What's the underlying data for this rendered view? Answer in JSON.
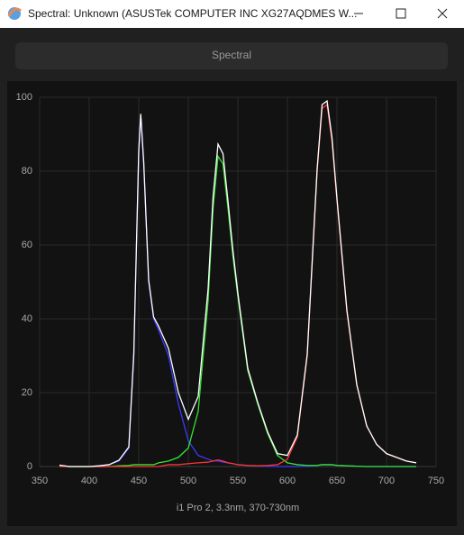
{
  "window": {
    "title": "Spectral: Unknown (ASUSTek COMPUTER INC XG27AQDMES W..."
  },
  "button": "Spectral",
  "chart_data": {
    "type": "line",
    "x_label": "i1 Pro 2, 3.3nm, 370-730nm",
    "x": [
      370,
      380,
      390,
      400,
      410,
      420,
      430,
      440,
      445,
      450,
      452,
      455,
      460,
      465,
      470,
      480,
      490,
      500,
      510,
      520,
      525,
      530,
      535,
      540,
      545,
      550,
      560,
      570,
      580,
      590,
      600,
      610,
      620,
      625,
      630,
      635,
      640,
      645,
      650,
      660,
      670,
      680,
      690,
      700,
      710,
      720,
      730
    ],
    "series": [
      {
        "color": "#3a3aff",
        "values": [
          0.2,
          0,
          0,
          0,
          0.2,
          0.5,
          1.5,
          5,
          30,
          85,
          95,
          82,
          50,
          40,
          37,
          30,
          17,
          7,
          3,
          2,
          1.5,
          1.5,
          1.2,
          1,
          0.8,
          0.5,
          0.3,
          0.2,
          0.1,
          0,
          0,
          0,
          0.1,
          0.2,
          0.3,
          0.5,
          0.5,
          0.5,
          0.3,
          0.2,
          0.1,
          0,
          0,
          0,
          0,
          0,
          0
        ]
      },
      {
        "color": "#33e633",
        "values": [
          0.2,
          0,
          0,
          0,
          0,
          0,
          0.2,
          0.3,
          0.5,
          0.5,
          0.5,
          0.5,
          0.5,
          0.5,
          1,
          1.5,
          2.5,
          5,
          15,
          45,
          70,
          84,
          82,
          70,
          57,
          46,
          26,
          17,
          9,
          3,
          1,
          0.5,
          0.3,
          0.3,
          0.3,
          0.5,
          0.5,
          0.5,
          0.3,
          0.2,
          0.1,
          0,
          0,
          0,
          0,
          0,
          0
        ]
      },
      {
        "color": "#ff3333",
        "values": [
          0,
          0,
          0,
          0,
          0,
          0,
          0,
          0,
          0,
          0,
          0,
          0,
          0,
          0,
          0,
          0.5,
          0.5,
          0.8,
          1,
          1.2,
          1.5,
          1.8,
          1.5,
          1,
          0.8,
          0.5,
          0.3,
          0.2,
          0.3,
          0.5,
          2,
          8,
          30,
          55,
          80,
          97,
          98,
          88,
          72,
          42,
          22,
          11,
          6,
          3.5,
          2.5,
          1.5,
          1
        ]
      },
      {
        "color": "#ffffff",
        "values": [
          0.4,
          0,
          0,
          0,
          0.2,
          0.5,
          1.7,
          5.3,
          30.5,
          85.5,
          95.5,
          82.5,
          50.5,
          40.5,
          38,
          32,
          20,
          12.8,
          19,
          48.2,
          73,
          87.3,
          84.7,
          72,
          58.6,
          47,
          26.6,
          17.4,
          9.4,
          3.5,
          3,
          8.5,
          30.4,
          55.5,
          80.6,
          98,
          99,
          89,
          72.6,
          42.4,
          22.2,
          11,
          6,
          3.5,
          2.5,
          1.5,
          1
        ]
      }
    ],
    "xlim": [
      350,
      750
    ],
    "xticks": [
      350,
      400,
      450,
      500,
      550,
      600,
      650,
      700,
      750
    ],
    "ylim": [
      0,
      100
    ],
    "yticks": [
      0,
      20,
      40,
      60,
      80,
      100
    ],
    "grid": true
  }
}
